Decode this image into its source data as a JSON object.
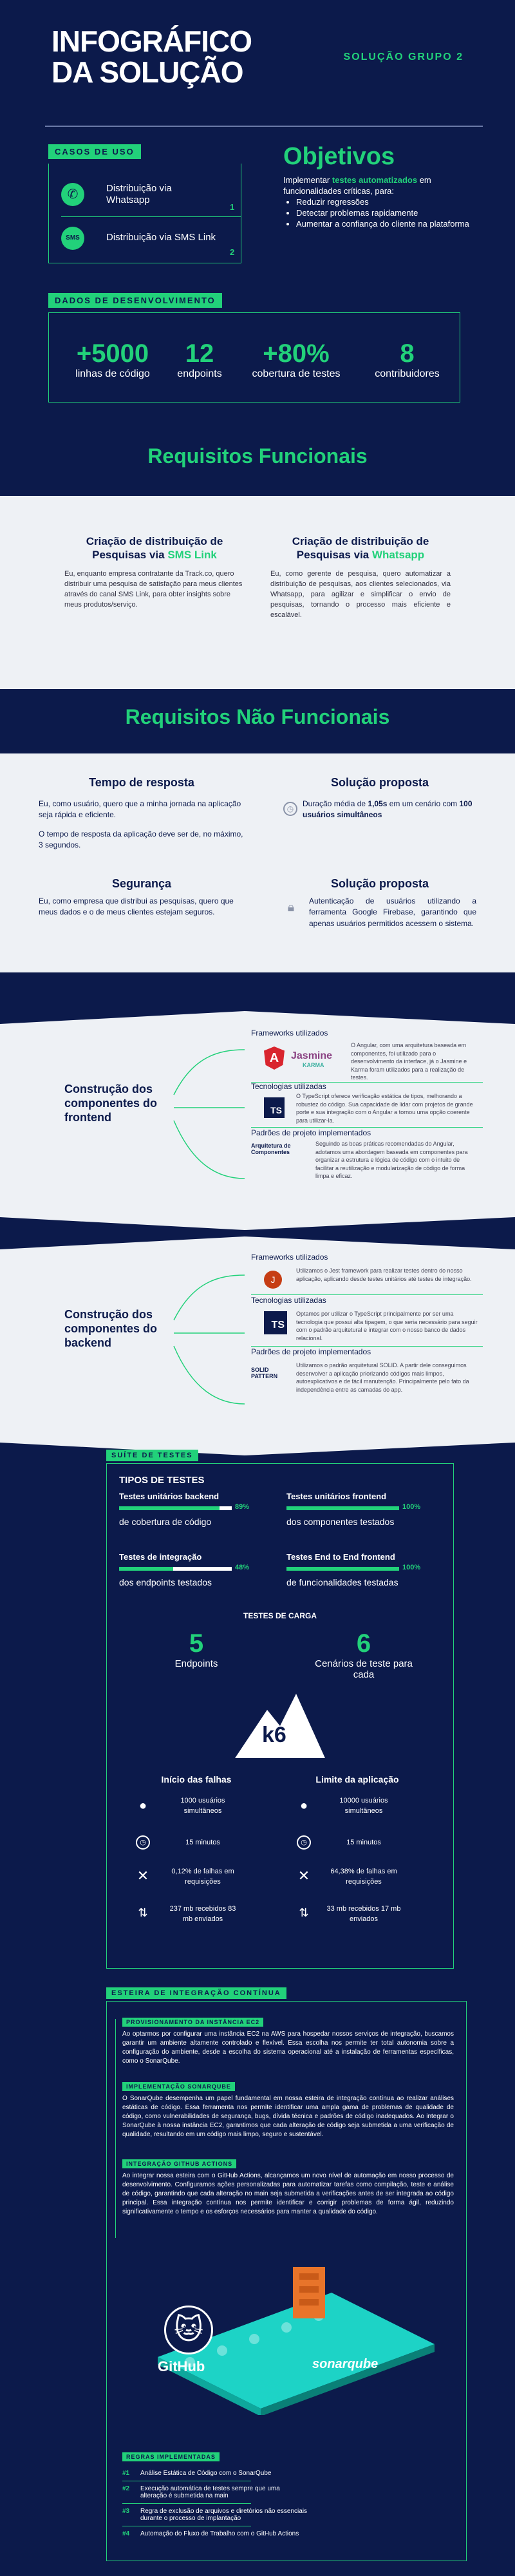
{
  "header": {
    "title_l1": "INFOGRÁFICO",
    "title_l2": "DA SOLUÇÃO",
    "group": "SOLUÇÃO GRUPO 2"
  },
  "use_cases": {
    "tag": "CASOS DE USO",
    "items": [
      {
        "label": "Distribuição via Whatsapp",
        "num": "1"
      },
      {
        "label": "Distribuição via SMS Link",
        "num": "2"
      }
    ],
    "sms_icon": "SMS"
  },
  "objectives": {
    "title": "Objetivos",
    "intro_a": "Implementar ",
    "intro_b": "testes automatizados",
    "intro_c": " em funcionalidades críticas, para:",
    "bullets": [
      "Reduzir regressões",
      "Detectar problemas rapidamente",
      "Aumentar a confiança do cliente na plataforma"
    ]
  },
  "dev_data": {
    "tag": "DADOS DE DESENVOLVIMENTO",
    "stats": [
      {
        "value": "+5000",
        "label": "linhas de código"
      },
      {
        "value": "12",
        "label": "endpoints"
      },
      {
        "value": "+80%",
        "label": "cobertura de testes"
      },
      {
        "value": "8",
        "label": "contribuidores"
      }
    ]
  },
  "func_req": {
    "title": "Requisitos Funcionais",
    "cols": [
      {
        "title_a": "Criação de distribuição de",
        "title_b": "Pesquisas via ",
        "title_c": "SMS Link",
        "text": "Eu, enquanto empresa contratante da Track.co, quero distribuir uma pesquisa de satisfação para meus clientes através do canal SMS Link, para obter insights sobre meus produtos/serviço."
      },
      {
        "title_a": "Criação de distribuição de",
        "title_b": "Pesquisas via ",
        "title_c": "Whatsapp",
        "text": "Eu, como gerente de pesquisa, quero automatizar a distribuição de pesquisas, aos clientes selecionados, via Whatsapp, para agilizar e simplificar o envio de pesquisas, tornando o processo mais eficiente e escalável."
      }
    ]
  },
  "nonfunc_req": {
    "title": "Requisitos Não Funcionais",
    "rt_title": "Tempo de resposta",
    "rt_text1": "Eu, como usuário, quero que a minha jornada na aplicação seja rápida e eficiente.",
    "rt_text2": "O tempo de resposta da aplicação deve ser de, no máximo, 3 segundos.",
    "sol1_title": "Solução proposta",
    "sol1_a": "Duração média de ",
    "sol1_b": "1,05s",
    "sol1_c": " em um cenário com ",
    "sol1_d": "100 usuários simultâneos",
    "sec_title": "Segurança",
    "sec_text": "Eu, como empresa que distribui as pesquisas, quero que meus dados e o de meus clientes estejam seguros.",
    "sol2_title": "Solução proposta",
    "sol2_text": "Autenticação de usuários utilizando a ferramenta Google Firebase, garantindo que apenas usuários permitidos acessem o sistema."
  },
  "frontend": {
    "title": "Construção dos componentes do frontend",
    "fw_label": "Frameworks utilizados",
    "fw_text": "O Angular, com uma arquitetura baseada em componentes, foi utilizado para o desenvolvimento da interface, já o Jasmine e Karma foram utilizados para a realização de testes.",
    "jasmine": "Jasmine",
    "karma": "KARMA",
    "tech_label": "Tecnologias utilizadas",
    "tech_text": "O TypeScript oferece verificação estática de tipos, melhorando a robustez do código. Sua capacidade de lidar com projetos de grande porte e sua integração com o Angular a tornou uma opção coerente para utilizar-la.",
    "ts": "TS",
    "pattern_label": "Padrões de projeto implementados",
    "pattern_name": "Arquitetura de Componentes",
    "pattern_text": "Seguindo as boas práticas recomendadas do Angular, adotamos uma abordagem baseada em componentes para organizar a estrutura e lógica de código com o intuito de facilitar a reutilização e modularização de código de forma limpa e eficaz."
  },
  "backend": {
    "title": "Construção dos componentes do backend",
    "fw_label": "Frameworks utilizados",
    "fw_text": "Utilizamos o Jest framework para realizar testes dentro do nosso aplicação, aplicando desde testes unitários até testes de integração.",
    "tech_label": "Tecnologias utilizadas",
    "tech_text": "Optamos por utilizar o TypeScript principalmente por ser uma tecnologia que possui alta tipagem, o que seria necessário para seguir com o padrão arquitetural e integrar com o nosso banco de dados relacional.",
    "ts": "TS",
    "pattern_label": "Padrões de projeto implementados",
    "pattern_name": "SOLID PATTERN",
    "pattern_text": "Utilizamos o padrão arquitetural SOLID. A partir dele conseguimos desenvolver a aplicação priorizando códigos mais limpos, autoexplicativos e de fácil manutenção. Principalmente pelo fato da independência entre as camadas do app."
  },
  "tests": {
    "tag": "SUÍTE DE TESTES",
    "types_title": "TIPOS DE TESTES",
    "unit_be": {
      "title": "Testes unitários backend",
      "pct": "89%",
      "value": 89,
      "sub": "de cobertura de código"
    },
    "unit_fe": {
      "title": "Testes unitários frontend",
      "pct": "100%",
      "value": 100,
      "sub": "dos componentes testados"
    },
    "integ": {
      "title": "Testes de integração",
      "pct": "48%",
      "value": 48,
      "sub": "dos endpoints testados"
    },
    "e2e": {
      "title": "Testes End to End frontend",
      "pct": "100%",
      "value": 100,
      "sub": "de funcionalidades testadas"
    },
    "load_title": "TESTES DE CARGA",
    "endpoints_num": "5",
    "endpoints_lbl": "Endpoints",
    "scen_num": "6",
    "scen_lbl": "Cenários de teste para cada",
    "k6": "k6",
    "fail_start": {
      "title": "Início das falhas",
      "users": "1000 usuários simultâneos",
      "time": "15 minutos",
      "fails": "0,12% de falhas em requisições",
      "mb": "237 mb recebidos 83 mb enviados"
    },
    "app_limit": {
      "title": "Limite da aplicação",
      "users": "10000 usuários simultâneos",
      "time": "15 minutos",
      "fails": "64,38% de falhas em requisições",
      "mb": "33 mb recebidos 17 mb enviados"
    }
  },
  "ci": {
    "tag": "ESTEIRA DE INTEGRAÇÃO CONTÍNUA",
    "items": [
      {
        "title": "PROVISIONAMENTO DA INSTÂNCIA EC2",
        "text": "Ao optarmos por configurar uma instância EC2 na AWS para hospedar nossos serviços de integração, buscamos garantir um ambiente altamente controlado e flexível. Essa escolha nos permite ter total autonomia sobre a configuração do ambiente, desde a escolha do sistema operacional até a instalação de ferramentas específicas, como o SonarQube."
      },
      {
        "title": "IMPLEMENTAÇÃO SONARQUBE",
        "text": "O SonarQube desempenha um papel fundamental em nossa esteira de integração contínua ao realizar análises estáticas de código. Essa ferramenta nos permite identificar uma ampla gama de problemas de qualidade de código, como vulnerabilidades de segurança, bugs, dívida técnica e padrões de código inadequados. Ao integrar o SonarQube à nossa instância EC2, garantimos que cada alteração de código seja submetida a uma verificação de qualidade, resultando em um código mais limpo, seguro e sustentável."
      },
      {
        "title": "INTEGRAÇÃO GITHUB ACTIONS",
        "text": "Ao integrar nossa esteira com o GitHub Actions, alcançamos um novo nível de automação em nosso processo de desenvolvimento. Configuramos ações personalizadas para automatizar tarefas como compilação, teste e análise de código, garantindo que cada alteração no main seja submetida a verificações antes de ser integrada ao código principal. Essa integração contínua nos permite identificar e corrigir problemas de forma ágil, reduzindo significativamente o tempo e os esforços necessários para manter a qualidade do código."
      }
    ],
    "github": "GitHub",
    "sonar": "sonarqube",
    "rules_tag": "REGRAS IMPLEMENTADAS",
    "rules": [
      {
        "n": "#1",
        "t": "Análise Estática de Código com o SonarQube"
      },
      {
        "n": "#2",
        "t": "Execução automática de testes sempre que uma alteração é submetida na main"
      },
      {
        "n": "#3",
        "t": "Regra de exclusão de arquivos e diretórios não essenciais durante o processo de implantação"
      },
      {
        "n": "#4",
        "t": "Automação do Fluxo de Trabalho com o GitHub Actions"
      }
    ]
  },
  "colors": {
    "navy": "#0c1a4b",
    "green": "#22d17a",
    "light": "#eef1f5"
  },
  "icons": [
    "whatsapp-icon",
    "sms-icon",
    "angular-icon",
    "jasmine-icon",
    "karma-icon",
    "typescript-icon",
    "jest-icon",
    "k6-icon",
    "user-icon",
    "clock-icon",
    "cross-icon",
    "data-icon",
    "github-icon",
    "sonarqube-icon"
  ]
}
